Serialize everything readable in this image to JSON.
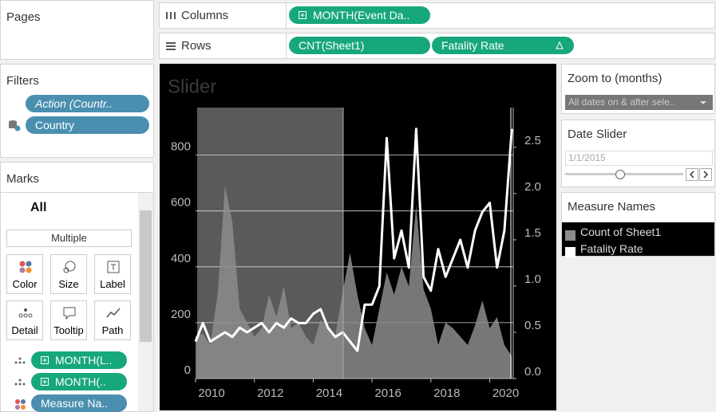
{
  "pages": {
    "title": "Pages"
  },
  "shelves": {
    "columns": {
      "label": "Columns",
      "pills": [
        "MONTH(Event Da.."
      ]
    },
    "rows": {
      "label": "Rows",
      "pills": [
        "CNT(Sheet1)",
        "Fatality Rate"
      ]
    }
  },
  "filters": {
    "title": "Filters",
    "pills": [
      "Action (Countr..",
      "Country"
    ]
  },
  "marks": {
    "title": "Marks",
    "level": "All",
    "type": "Multiple",
    "buttons": [
      "Color",
      "Size",
      "Label",
      "Detail",
      "Tooltip",
      "Path"
    ],
    "pills": [
      "MONTH(L..",
      "MONTH(..",
      "Measure Na.."
    ]
  },
  "chart_data": {
    "type": "area-line",
    "title": "Slider",
    "x": [
      2010,
      2010.25,
      2010.5,
      2010.75,
      2011,
      2011.25,
      2011.5,
      2011.75,
      2012,
      2012.25,
      2012.5,
      2012.75,
      2013,
      2013.25,
      2013.5,
      2013.75,
      2014,
      2014.25,
      2014.5,
      2014.75,
      2015,
      2015.25,
      2015.5,
      2015.75,
      2016,
      2016.25,
      2016.5,
      2016.75,
      2017,
      2017.25,
      2017.5,
      2017.75,
      2018,
      2018.25,
      2018.5,
      2018.75,
      2019,
      2019.25,
      2019.5,
      2019.75,
      2020,
      2020.25,
      2020.5,
      2020.75
    ],
    "series": [
      {
        "name": "Count of Sheet1",
        "color": "#8c8c8c",
        "values": [
          150,
          160,
          120,
          300,
          690,
          560,
          250,
          200,
          150,
          180,
          300,
          220,
          330,
          180,
          200,
          150,
          120,
          210,
          180,
          150,
          310,
          450,
          300,
          180,
          120,
          250,
          380,
          300,
          400,
          330,
          620,
          320,
          250,
          120,
          200,
          180,
          150,
          120,
          190,
          280,
          180,
          220,
          120,
          80
        ]
      },
      {
        "name": "Fatality Rate",
        "color": "#ffffff",
        "axis": "y2",
        "values": [
          0.4,
          0.6,
          0.4,
          0.45,
          0.5,
          0.45,
          0.55,
          0.5,
          0.55,
          0.6,
          0.5,
          0.6,
          0.55,
          0.65,
          0.6,
          0.6,
          0.7,
          0.75,
          0.55,
          0.45,
          0.5,
          0.4,
          0.3,
          0.8,
          0.8,
          1.0,
          2.6,
          1.3,
          1.6,
          1.2,
          2.7,
          1.1,
          0.95,
          1.4,
          1.1,
          1.3,
          1.5,
          1.2,
          1.6,
          1.8,
          1.9,
          1.2,
          1.6,
          2.7
        ]
      }
    ],
    "xlim": [
      2010,
      2020.8
    ],
    "xticks": [
      2010,
      2012,
      2014,
      2016,
      2018,
      2020
    ],
    "ylim": [
      0,
      970
    ],
    "yticks": [
      0,
      200,
      400,
      600,
      800
    ],
    "y2lim": [
      0,
      2.93
    ],
    "y2ticks": [
      {
        "value": 0,
        "label": "0.0"
      },
      0.5,
      {
        "value": 1,
        "label": "1.0"
      },
      1.5,
      {
        "value": 2,
        "label": "2.0"
      },
      2.5
    ],
    "grid": true
  },
  "zoom": {
    "title": "Zoom to (months)",
    "value": "All dates on & after sele.."
  },
  "date_slider": {
    "title": "Date Slider",
    "value": "1/1/2015"
  },
  "legend": {
    "title": "Measure Names"
  }
}
